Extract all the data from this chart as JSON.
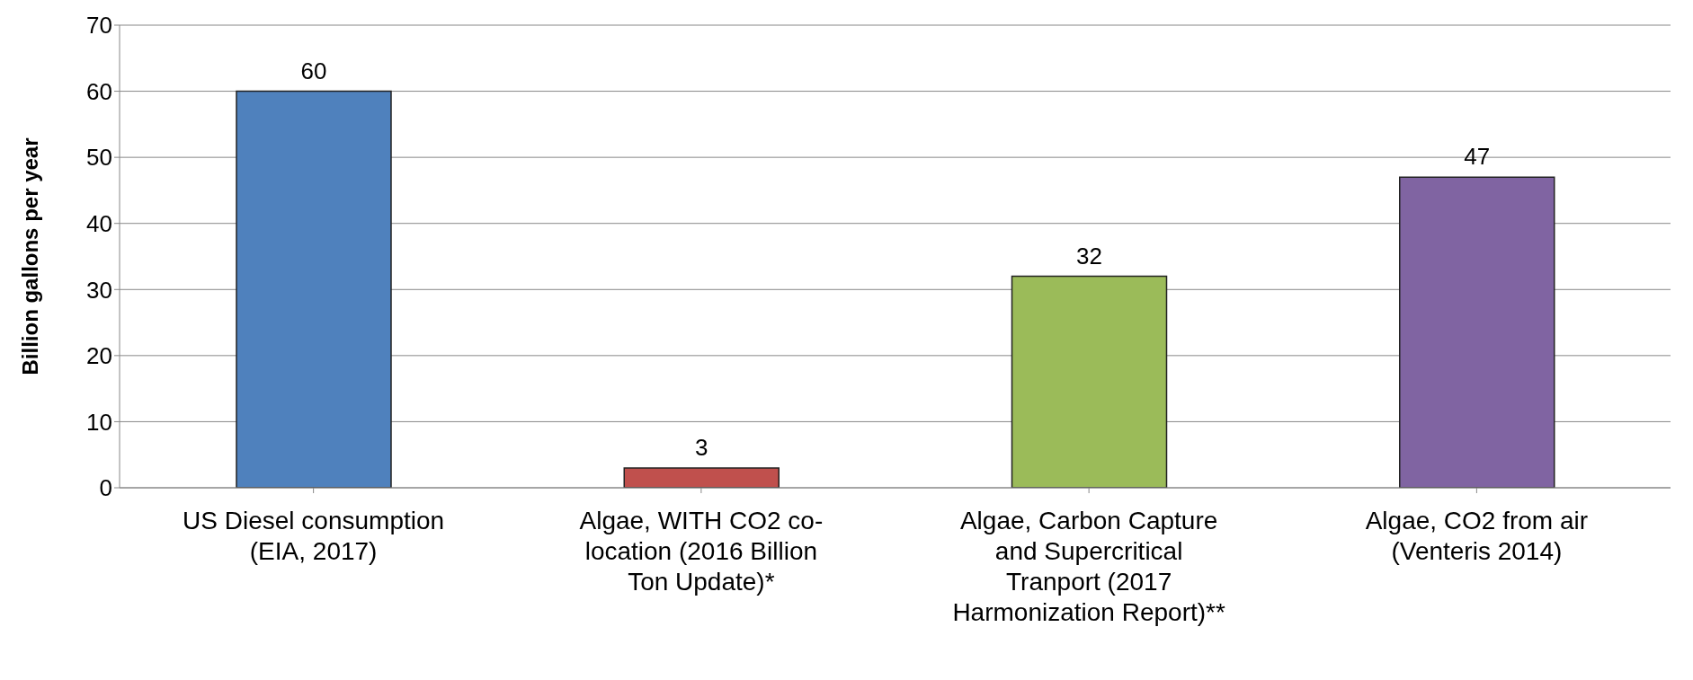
{
  "chart_data": {
    "type": "bar",
    "ylabel": "Billion gallons per year",
    "categories": [
      "US Diesel consumption (EIA, 2017)",
      "Algae, WITH CO2 co-location (2016 Billion Ton Update)*",
      "Algae, Carbon Capture and Supercritical Tranport (2017 Harmonization Report)**",
      "Algae, CO2 from air (Venteris 2014)"
    ],
    "values": [
      60,
      3,
      32,
      47
    ],
    "colors": [
      "#4f81bd",
      "#c0504d",
      "#9bbb59",
      "#8064a2"
    ],
    "ylim": [
      0,
      70
    ],
    "yticks": [
      0,
      10,
      20,
      30,
      40,
      50,
      60,
      70
    ],
    "grid": "y",
    "data_labels": true
  }
}
